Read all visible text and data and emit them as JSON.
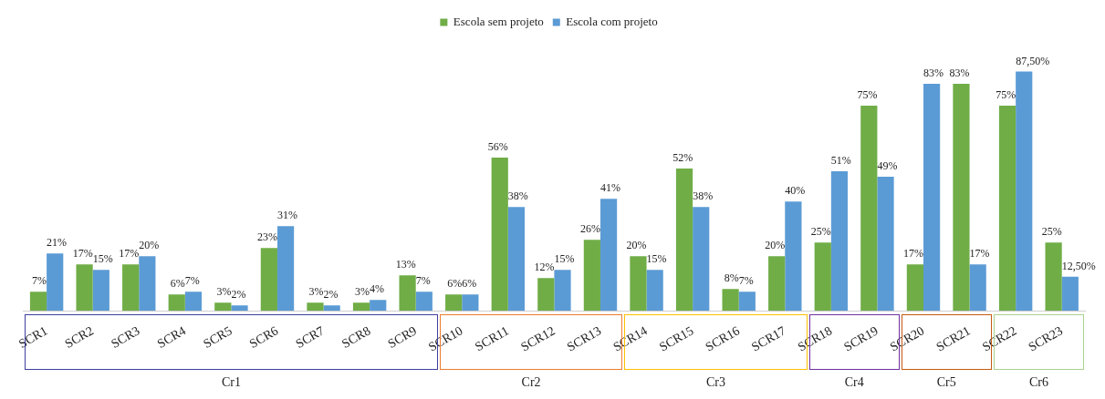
{
  "chart_data": {
    "type": "bar",
    "categories": [
      "SCR1",
      "SCR2",
      "SCR3",
      "SCR4",
      "SCR5",
      "SCR6",
      "SCR7",
      "SCR8",
      "SCR9",
      "SCR10",
      "SCR11",
      "SCR12",
      "SCR13",
      "SCR14",
      "SCR15",
      "SCR16",
      "SCR17",
      "SCR18",
      "SCR19",
      "SCR20",
      "SCR21",
      "SCR22",
      "SCR23"
    ],
    "series": [
      {
        "name": "Escola sem projeto",
        "color": "#70ad47",
        "values": [
          7,
          17,
          17,
          6,
          3,
          23,
          3,
          3,
          13,
          6,
          56,
          12,
          26,
          20,
          52,
          8,
          20,
          25,
          75,
          17,
          83,
          75,
          25
        ],
        "value_labels": [
          "7%",
          "17%",
          "17%",
          "6%",
          "3%",
          "23%",
          "3%",
          "3%",
          "13%",
          "6%",
          "56%",
          "12%",
          "26%",
          "20%",
          "52%",
          "8%",
          "20%",
          "25%",
          "75%",
          "17%",
          "83%",
          "75%",
          "25%"
        ]
      },
      {
        "name": "Escola com projeto",
        "color": "#5b9bd5",
        "values": [
          21,
          15,
          20,
          7,
          2,
          31,
          2,
          4,
          7,
          6,
          38,
          15,
          41,
          15,
          38,
          7,
          40,
          51,
          49,
          83,
          17,
          87.5,
          12.5
        ],
        "value_labels": [
          "21%",
          "15%",
          "20%",
          "7%",
          "2%",
          "31%",
          "2%",
          "4%",
          "7%",
          "6%",
          "38%",
          "15%",
          "41%",
          "15%",
          "38%",
          "7%",
          "40%",
          "51%",
          "49%",
          "83%",
          "17%",
          "87,50%",
          "12,50%"
        ]
      }
    ],
    "annotations": [
      "Cr1",
      "Cr2",
      "Cr3",
      "Cr4",
      "Cr5",
      "Cr6"
    ],
    "legend": "top",
    "grid": false
  }
}
